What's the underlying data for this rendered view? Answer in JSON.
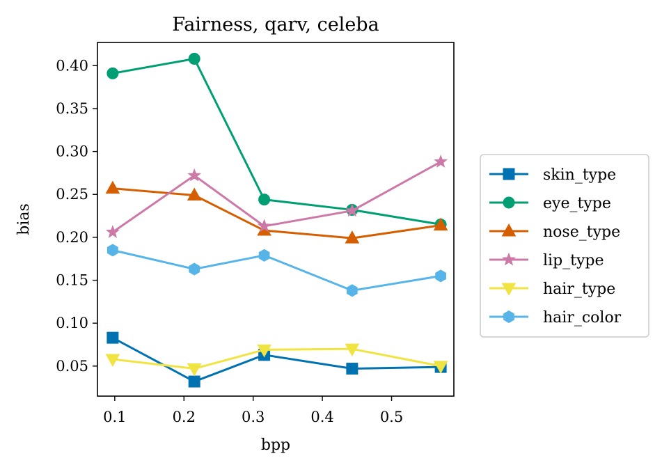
{
  "chart_data": {
    "type": "line",
    "title": "Fairness, qarv, celeba",
    "xlabel": "bpp",
    "ylabel": "bias",
    "xlim": [
      0.075,
      0.59
    ],
    "ylim": [
      0.015,
      0.427
    ],
    "xticks": [
      0.1,
      0.2,
      0.3,
      0.4,
      0.5
    ],
    "xtick_labels": [
      "0.1",
      "0.2",
      "0.3",
      "0.4",
      "0.5"
    ],
    "yticks": [
      0.05,
      0.1,
      0.15,
      0.2,
      0.25,
      0.3,
      0.35,
      0.4
    ],
    "ytick_labels": [
      "0.05",
      "0.10",
      "0.15",
      "0.20",
      "0.25",
      "0.30",
      "0.35",
      "0.40"
    ],
    "grid": false,
    "legend_position": "outside-right",
    "x": [
      0.097,
      0.215,
      0.316,
      0.443,
      0.571
    ],
    "series": [
      {
        "name": "skin_type",
        "color": "#0072B2",
        "marker": "square",
        "values": [
          0.083,
          0.032,
          0.063,
          0.047,
          0.049
        ]
      },
      {
        "name": "eye_type",
        "color": "#009E73",
        "marker": "circle",
        "values": [
          0.391,
          0.408,
          0.244,
          0.232,
          0.215
        ]
      },
      {
        "name": "nose_type",
        "color": "#D55E00",
        "marker": "triangle",
        "values": [
          0.257,
          0.249,
          0.208,
          0.199,
          0.214
        ]
      },
      {
        "name": "lip_type",
        "color": "#CC79A7",
        "marker": "star",
        "values": [
          0.206,
          0.272,
          0.213,
          0.231,
          0.288
        ]
      },
      {
        "name": "hair_type",
        "color": "#F0E442",
        "marker": "triangle-down",
        "values": [
          0.058,
          0.047,
          0.069,
          0.07,
          0.05
        ]
      },
      {
        "name": "hair_color",
        "color": "#56B4E9",
        "marker": "hexagon",
        "values": [
          0.185,
          0.163,
          0.179,
          0.138,
          0.155
        ]
      }
    ]
  }
}
